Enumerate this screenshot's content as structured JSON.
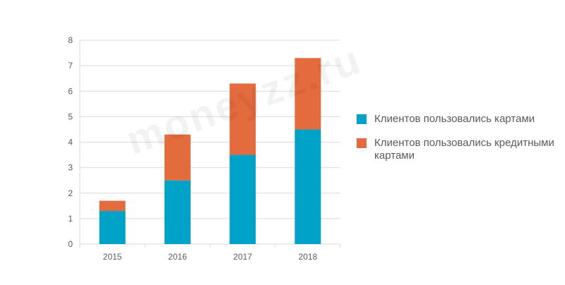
{
  "chart_data": {
    "type": "bar",
    "stacked": true,
    "categories": [
      "2015",
      "2016",
      "2017",
      "2018"
    ],
    "series": [
      {
        "name": "Клиентов пользовались картами",
        "values": [
          1.3,
          2.5,
          3.5,
          4.5
        ],
        "color": "#00a3c7"
      },
      {
        "name": "Клиентов пользовались кредитными картами",
        "values": [
          0.4,
          1.8,
          2.8,
          2.8
        ],
        "color": "#e36b3d"
      }
    ],
    "ylim": [
      0,
      8
    ],
    "yticks": [
      "0",
      "1",
      "2",
      "3",
      "4",
      "5",
      "6",
      "7",
      "8"
    ],
    "grid": true,
    "legend_position": "right",
    "title": "",
    "xlabel": "",
    "ylabel": ""
  },
  "watermark": "moneyzz.ru",
  "colors": {
    "grid": "#d9d9d9",
    "axis_text": "#595959"
  }
}
